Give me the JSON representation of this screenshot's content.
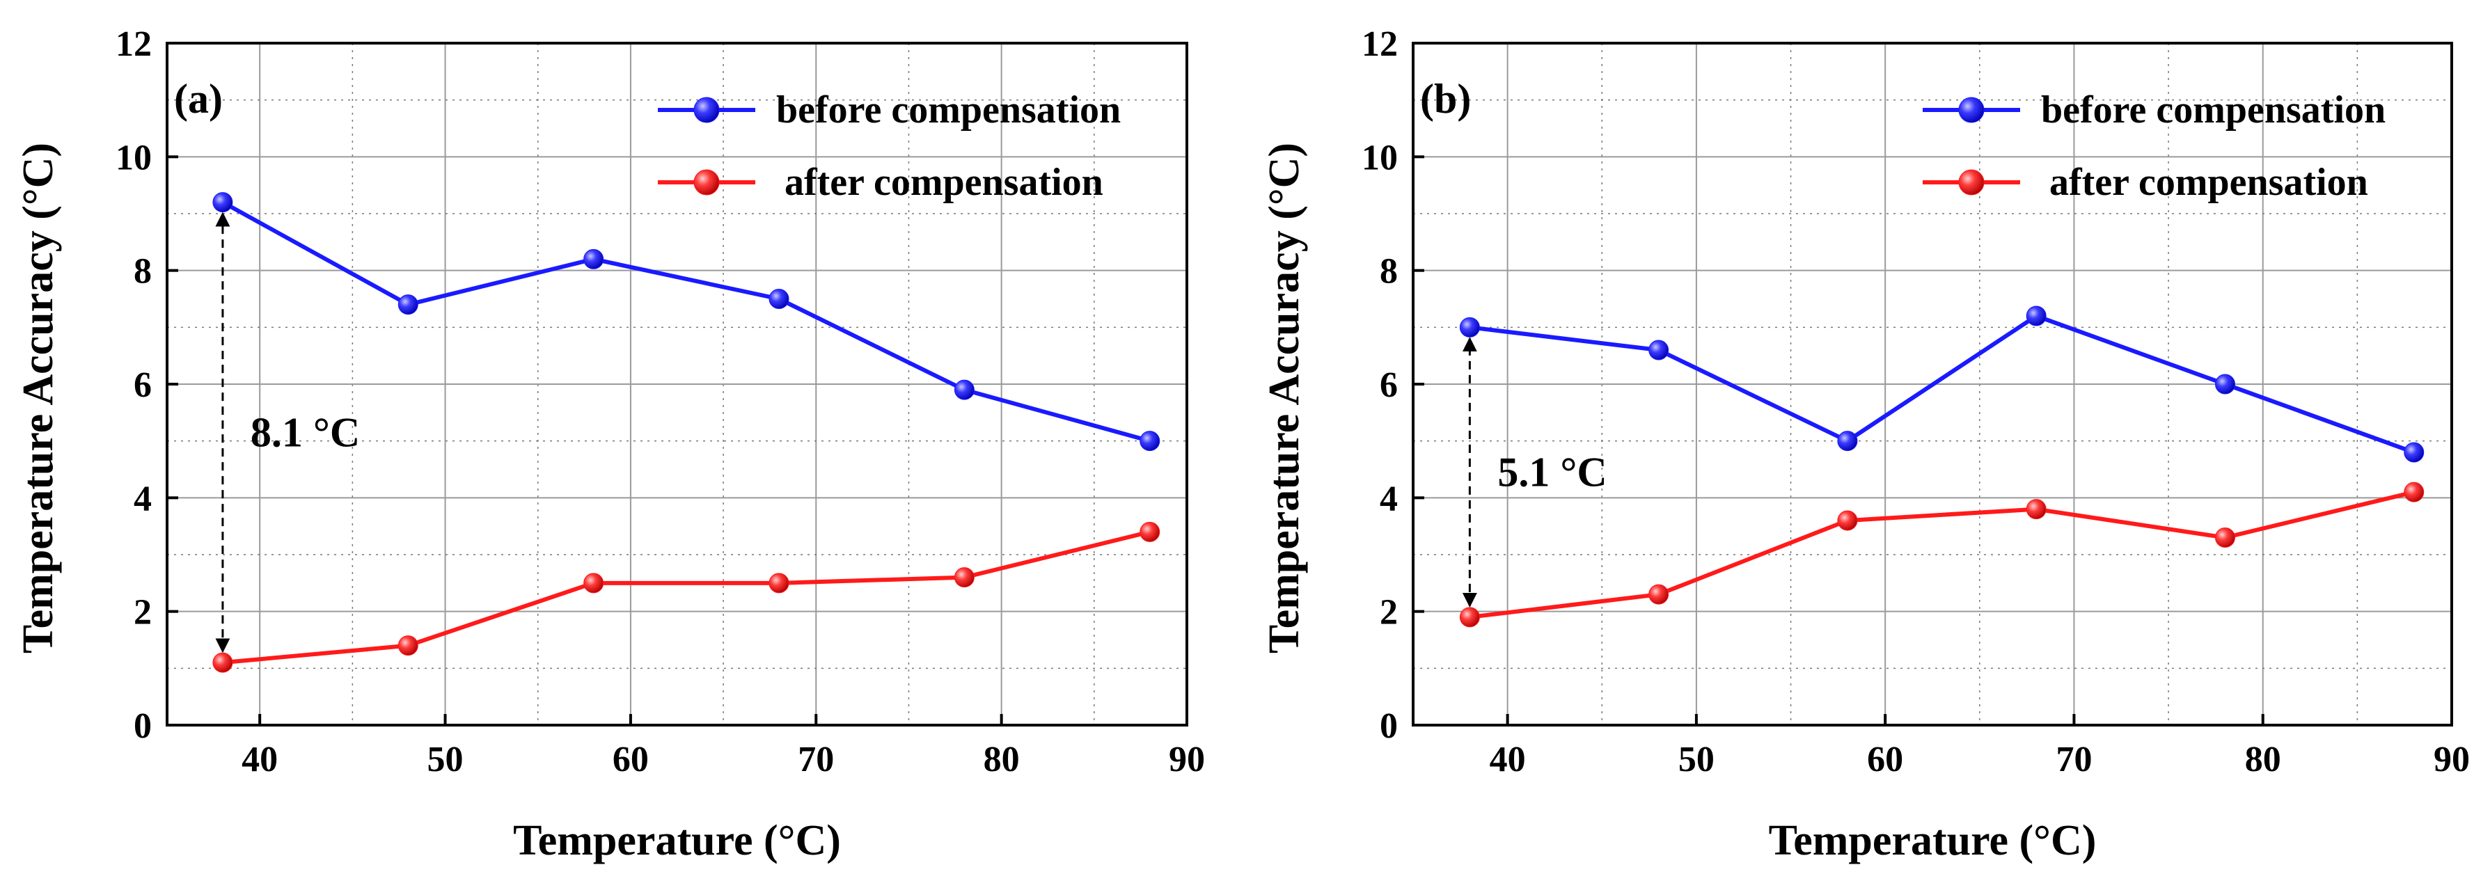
{
  "chart_data": [
    {
      "type": "line",
      "panel_label": "(a)",
      "xlabel": "Temperature (°C)",
      "ylabel": "Temperature Accuracy (°C)",
      "xlim": [
        35,
        90
      ],
      "ylim": [
        0,
        12
      ],
      "xticks": [
        40,
        50,
        60,
        70,
        80,
        90
      ],
      "yticks": [
        0,
        2,
        4,
        6,
        8,
        10,
        12
      ],
      "grid": true,
      "legend_position": "top-right",
      "x": [
        38,
        48,
        58,
        68,
        78,
        88
      ],
      "series": [
        {
          "name": "before compensation",
          "color": "#1a1aff",
          "values": [
            9.2,
            7.4,
            8.2,
            7.5,
            5.9,
            5.0
          ]
        },
        {
          "name": "after compensation",
          "color": "#ff1a1a",
          "values": [
            1.1,
            1.4,
            2.5,
            2.5,
            2.6,
            3.4
          ]
        }
      ],
      "annotation": {
        "text": "8.1 °C",
        "x": 38,
        "y_from": 1.1,
        "y_to": 9.2
      }
    },
    {
      "type": "line",
      "panel_label": "(b)",
      "xlabel": "Temperature (°C)",
      "ylabel": "Temperature Accuracy (°C)",
      "xlim": [
        35,
        90
      ],
      "ylim": [
        0,
        12
      ],
      "xticks": [
        40,
        50,
        60,
        70,
        80,
        90
      ],
      "yticks": [
        0,
        2,
        4,
        6,
        8,
        10,
        12
      ],
      "grid": true,
      "legend_position": "top-right",
      "x": [
        38,
        48,
        58,
        68,
        78,
        88
      ],
      "series": [
        {
          "name": "before compensation",
          "color": "#1a1aff",
          "values": [
            7.0,
            6.6,
            5.0,
            7.2,
            6.0,
            4.8
          ]
        },
        {
          "name": "after compensation",
          "color": "#ff1a1a",
          "values": [
            1.9,
            2.3,
            3.6,
            3.8,
            3.3,
            4.1
          ]
        }
      ],
      "annotation": {
        "text": "5.1 °C",
        "x": 38,
        "y_from": 1.9,
        "y_to": 7.0
      }
    }
  ]
}
